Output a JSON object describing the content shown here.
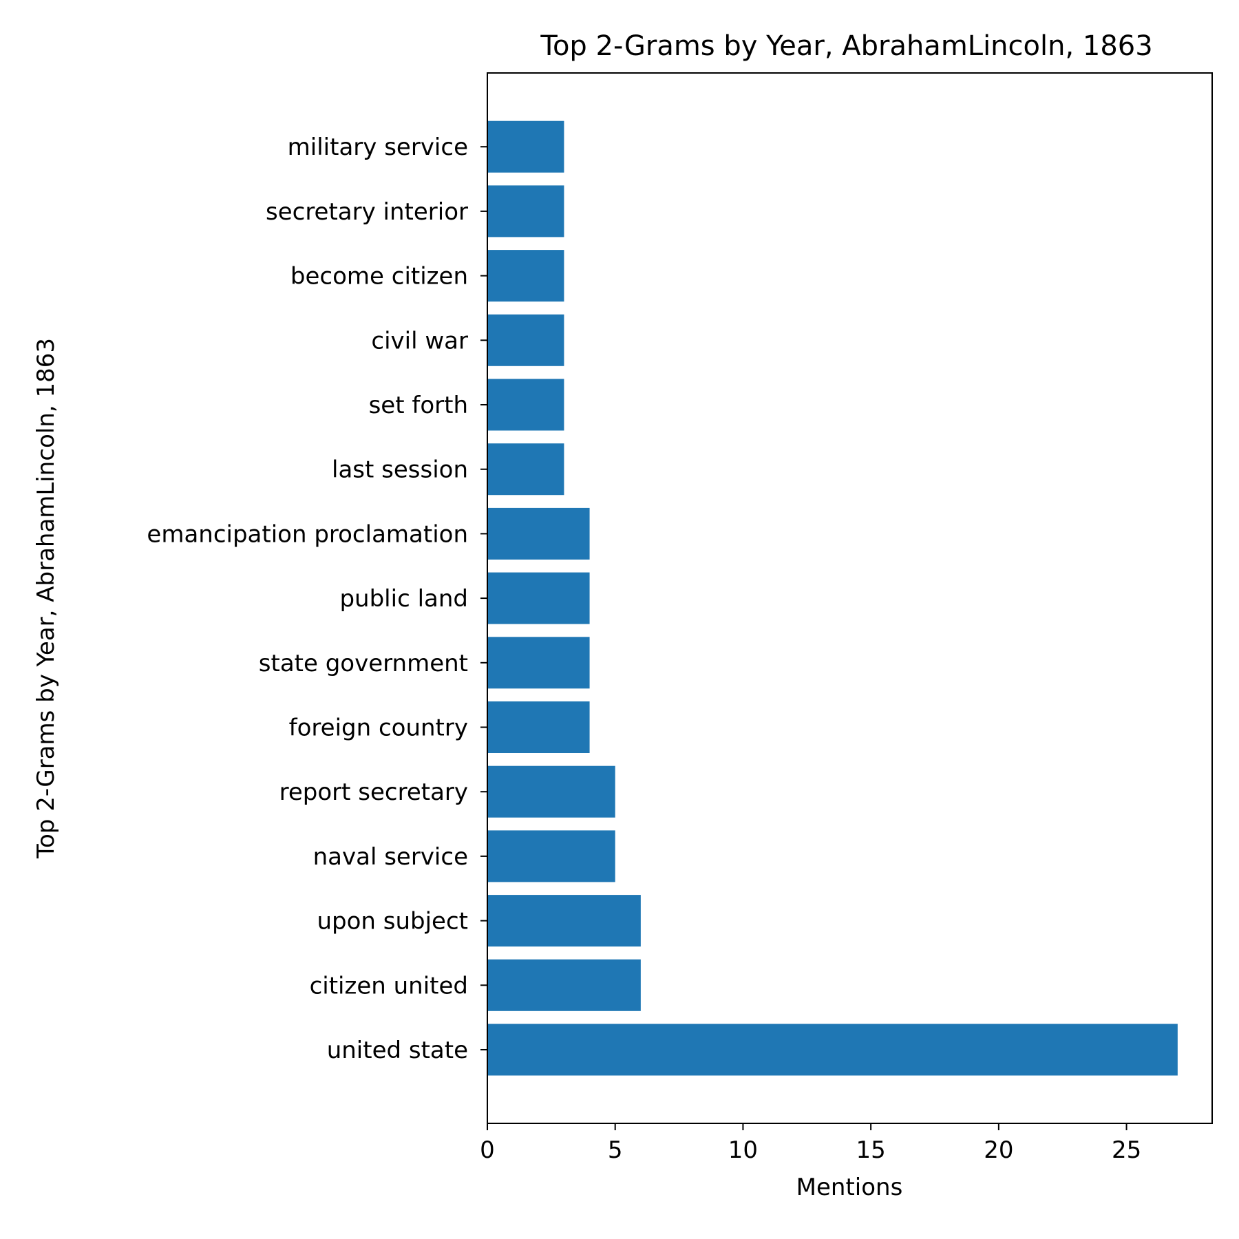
{
  "chart_data": {
    "type": "bar",
    "orientation": "horizontal",
    "title": "Top 2-Grams by Year, AbrahamLincoln, 1863",
    "xlabel": "Mentions",
    "ylabel": "Top 2-Grams by Year, AbrahamLincoln, 1863",
    "categories": [
      "united state",
      "citizen united",
      "upon subject",
      "naval service",
      "report secretary",
      "foreign country",
      "state government",
      "public land",
      "emancipation proclamation",
      "last session",
      "set forth",
      "civil war",
      "become citizen",
      "secretary interior",
      "military service"
    ],
    "values": [
      27,
      6,
      6,
      5,
      5,
      4,
      4,
      4,
      4,
      3,
      3,
      3,
      3,
      3,
      3
    ],
    "xlim": [
      0,
      28.35
    ],
    "xticks": [
      0,
      5,
      10,
      15,
      20,
      25
    ],
    "bar_color": "#1f77b4",
    "grid": false,
    "legend": "none"
  }
}
